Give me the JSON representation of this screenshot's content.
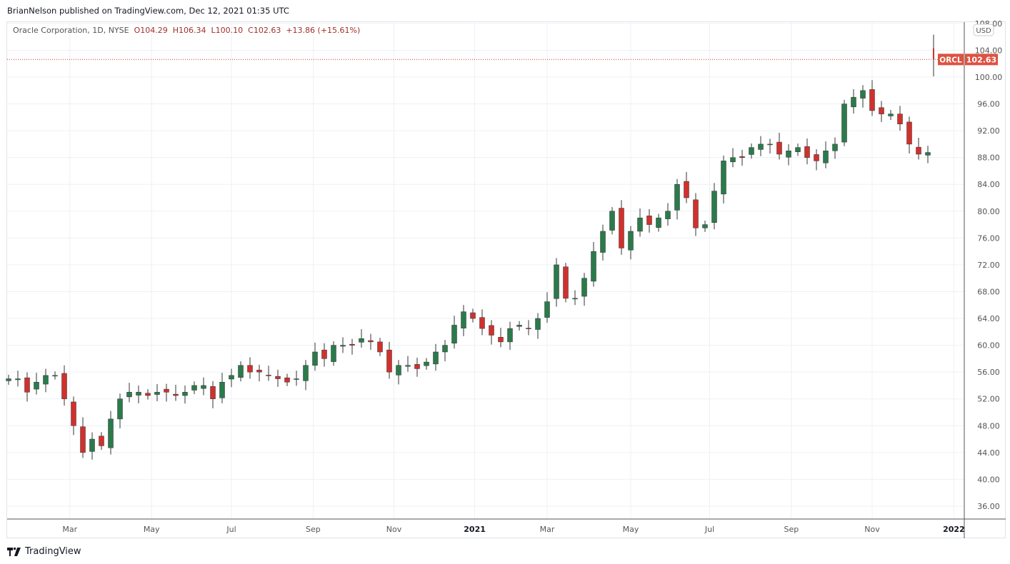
{
  "header": {
    "published": "BrianNelson published on TradingView.com, Dec 12, 2021 01:35 UTC"
  },
  "legend": {
    "symbol": "Oracle Corporation, 1D, NYSE",
    "o": "O104.29",
    "h": "H106.34",
    "l": "L100.10",
    "c": "C102.63",
    "change": "+13.86 (+15.61%)"
  },
  "price_axis": {
    "currency": "USD",
    "ticker_tag": "ORCL",
    "last_price": "102.63"
  },
  "footer": {
    "logo": "TradingView"
  },
  "colors": {
    "up": "#2b7a4b",
    "down": "#d0312d",
    "wick": "#333333",
    "tag": "#dd5342",
    "grid": "#eef0f3"
  },
  "chart_data": {
    "type": "candlestick",
    "title": "Oracle Corporation, 1D, NYSE",
    "xlabel": "",
    "ylabel": "USD",
    "ylim": [
      34,
      108.3
    ],
    "yticks": [
      36,
      40,
      44,
      48,
      52,
      56,
      60,
      64,
      68,
      72,
      76,
      80,
      84,
      88,
      92,
      96,
      100,
      104,
      108
    ],
    "xticks": [
      {
        "label": "Mar",
        "week": 6.6
      },
      {
        "label": "May",
        "week": 15.4
      },
      {
        "label": "Jul",
        "week": 24
      },
      {
        "label": "Sep",
        "week": 32.8
      },
      {
        "label": "Nov",
        "week": 41.5
      },
      {
        "label": "2021",
        "week": 50.2
      },
      {
        "label": "Mar",
        "week": 58
      },
      {
        "label": "May",
        "week": 67
      },
      {
        "label": "Jul",
        "week": 75.5
      },
      {
        "label": "Sep",
        "week": 84.3
      },
      {
        "label": "Nov",
        "week": 93
      },
      {
        "label": "2022",
        "week": 101.8
      }
    ],
    "weekly_closes": [
      55,
      55,
      53,
      54.5,
      55.5,
      55.5,
      52,
      48,
      44,
      46,
      45,
      49,
      52,
      53,
      53,
      52.5,
      53,
      53,
      52.5,
      53,
      54,
      54,
      52,
      54.5,
      55.5,
      57,
      56,
      56,
      55.5,
      55,
      54.5,
      55,
      57,
      59,
      58,
      60,
      60,
      60,
      61,
      60.5,
      59,
      56,
      57,
      57,
      56.5,
      57.5,
      59,
      60,
      63,
      65,
      64,
      62.5,
      61.5,
      60.5,
      62.5,
      63,
      62.5,
      64,
      66.5,
      72,
      67,
      67,
      70,
      74,
      77,
      80,
      74.5,
      77,
      79,
      78,
      79,
      80,
      84,
      82,
      77.5,
      78,
      83,
      87.5,
      88,
      88,
      89.5,
      90,
      90,
      88.5,
      89,
      89.5,
      88,
      87.5,
      89,
      90,
      96,
      97,
      98,
      95,
      94.5,
      94.5,
      93,
      90,
      88.5,
      88.76
    ],
    "last_candle": {
      "open": 104.29,
      "high": 106.34,
      "low": 100.1,
      "close": 102.63
    },
    "last_price": 102.63
  }
}
